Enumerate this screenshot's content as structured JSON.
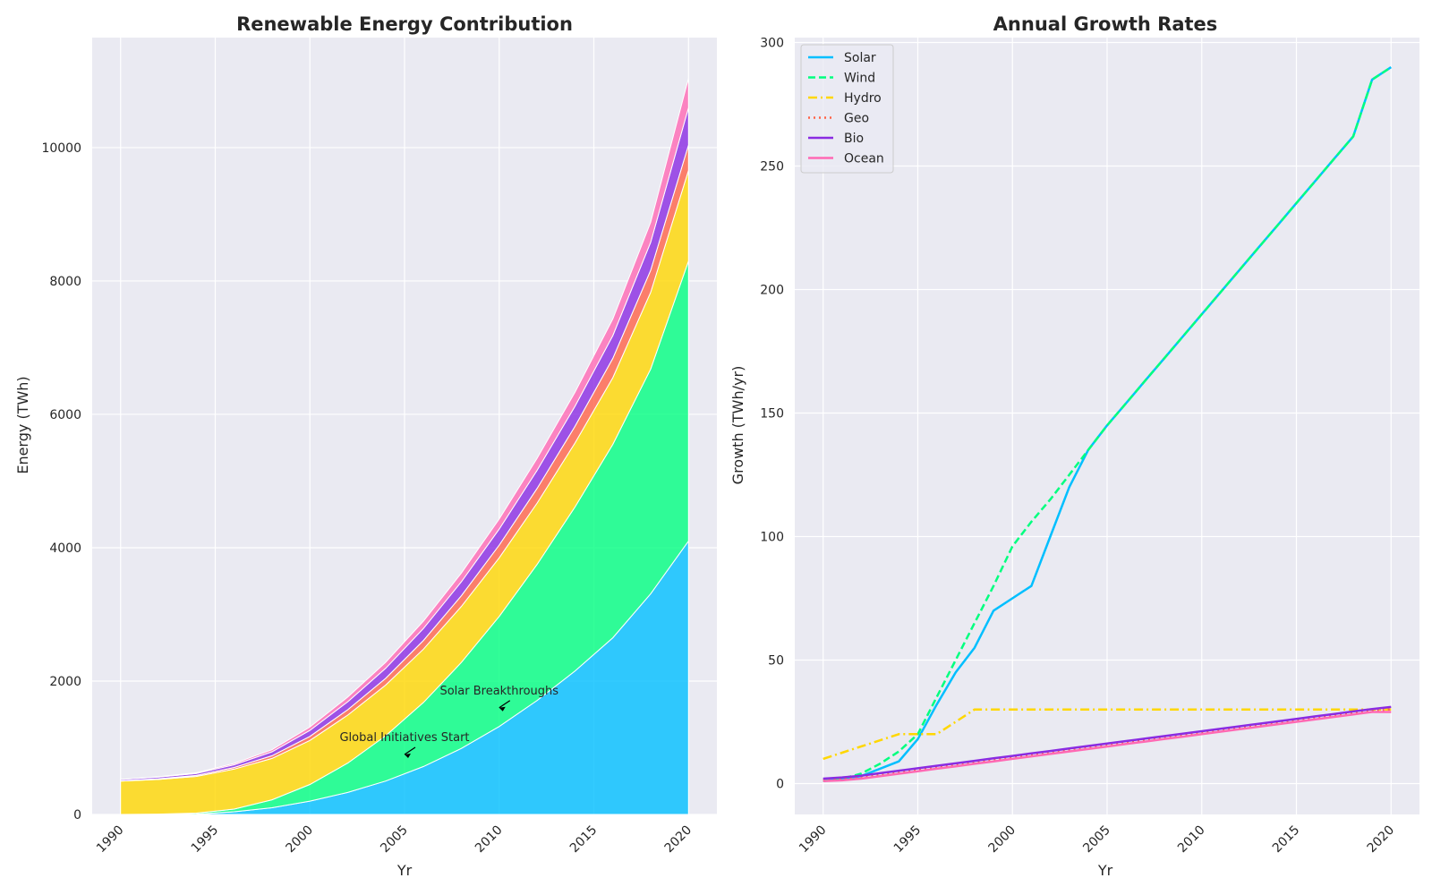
{
  "chart_data": [
    {
      "type": "area",
      "title": "Renewable Energy Contribution",
      "xlabel": "Yr",
      "ylabel": "Energy (TWh)",
      "xlim": [
        1988.5,
        2021.5
      ],
      "ylim": [
        0,
        11650
      ],
      "xticks": [
        1990,
        1995,
        2000,
        2005,
        2010,
        2015,
        2020
      ],
      "yticks": [
        0,
        2000,
        4000,
        6000,
        8000,
        10000
      ],
      "grid": true,
      "stacked": true,
      "x": [
        1990,
        1992,
        1994,
        1996,
        1998,
        2000,
        2002,
        2004,
        2006,
        2008,
        2010,
        2012,
        2014,
        2016,
        2018,
        2020
      ],
      "series": [
        {
          "name": "Solar",
          "color": "#00bfff",
          "values": [
            0,
            0,
            5,
            40,
            100,
            200,
            330,
            500,
            720,
            990,
            1320,
            1710,
            2150,
            2650,
            3310,
            4100
          ]
        },
        {
          "name": "Wind",
          "color": "#00ff7f",
          "values": [
            0,
            5,
            15,
            40,
            120,
            250,
            440,
            680,
            960,
            1290,
            1650,
            2040,
            2460,
            2900,
            3370,
            4200
          ]
        },
        {
          "name": "Hydro",
          "color": "#ffd700",
          "values": [
            500,
            520,
            550,
            600,
            620,
            660,
            720,
            760,
            800,
            840,
            880,
            920,
            960,
            1000,
            1150,
            1360
          ]
        },
        {
          "name": "Geo",
          "color": "#ff6347",
          "values": [
            5,
            10,
            15,
            25,
            40,
            60,
            80,
            100,
            130,
            160,
            190,
            220,
            250,
            290,
            330,
            380
          ]
        },
        {
          "name": "Bio",
          "color": "#8a2be2",
          "values": [
            20,
            25,
            30,
            40,
            60,
            90,
            120,
            150,
            180,
            210,
            240,
            270,
            300,
            340,
            420,
            560
          ]
        },
        {
          "name": "Ocean",
          "color": "#ff69b4",
          "values": [
            0,
            5,
            10,
            20,
            30,
            50,
            70,
            90,
            110,
            130,
            150,
            180,
            210,
            250,
            300,
            440
          ]
        }
      ],
      "annotations": [
        {
          "text": "Global Initiatives Start",
          "x": 2005,
          "y": 1100,
          "arrow_to": [
            2005,
            900
          ]
        },
        {
          "text": "Solar Breakthroughs",
          "x": 2010,
          "y": 1800,
          "arrow_to": [
            2010,
            1600
          ]
        }
      ]
    },
    {
      "type": "line",
      "title": "Annual Growth Rates",
      "xlabel": "Yr",
      "ylabel": "Growth (TWh/yr)",
      "xlim": [
        1988.5,
        2021.5
      ],
      "ylim": [
        -12.5,
        302
      ],
      "xticks": [
        1990,
        1995,
        2000,
        2005,
        2010,
        2015,
        2020
      ],
      "yticks": [
        0,
        50,
        100,
        150,
        200,
        250,
        300
      ],
      "grid": true,
      "legend": "top-left",
      "x": [
        1990,
        1991,
        1992,
        1993,
        1994,
        1995,
        1996,
        1997,
        1998,
        1999,
        2000,
        2001,
        2002,
        2003,
        2004,
        2005,
        2006,
        2007,
        2008,
        2009,
        2010,
        2011,
        2012,
        2013,
        2014,
        2015,
        2016,
        2017,
        2018,
        2019,
        2020
      ],
      "series": [
        {
          "name": "Solar",
          "color": "#00bfff",
          "dash": "solid",
          "values": [
            1,
            2,
            3,
            6,
            9,
            18,
            32,
            45,
            55,
            70,
            75,
            80,
            100,
            120,
            135,
            145,
            154,
            163,
            172,
            181,
            190,
            199,
            208,
            217,
            226,
            235,
            244,
            253,
            262,
            285,
            290
          ]
        },
        {
          "name": "Wind",
          "color": "#00ff7f",
          "dash": "dashed",
          "values": [
            1,
            2,
            4,
            8,
            13,
            20,
            35,
            50,
            65,
            80,
            96,
            106,
            115,
            125,
            135,
            145,
            154,
            163,
            172,
            181,
            190,
            199,
            208,
            217,
            226,
            235,
            244,
            253,
            262,
            285,
            290
          ]
        },
        {
          "name": "Hydro",
          "color": "#ffd700",
          "dash": "dashdot",
          "values": [
            10,
            12.5,
            15,
            17.5,
            20,
            20,
            20,
            25,
            30,
            30,
            30,
            30,
            30,
            30,
            30,
            30,
            30,
            30,
            30,
            30,
            30,
            30,
            30,
            30,
            30,
            30,
            30,
            30,
            30,
            30,
            30
          ]
        },
        {
          "name": "Geo",
          "color": "#ff6347",
          "dash": "dotted",
          "values": [
            1.5,
            2,
            2.8,
            3.6,
            4.5,
            5.5,
            6.5,
            7.5,
            8.5,
            9.5,
            10.5,
            11.5,
            12.5,
            13.5,
            14.5,
            15.5,
            16.5,
            17.5,
            18.5,
            19.5,
            20.5,
            21.5,
            22.5,
            23.5,
            24.5,
            25.5,
            26.5,
            27.5,
            28.5,
            29.5,
            30
          ]
        },
        {
          "name": "Bio",
          "color": "#8a2be2",
          "dash": "solid",
          "values": [
            2,
            2.5,
            3.2,
            4.2,
            5.2,
            6.2,
            7.2,
            8.2,
            9.2,
            10.2,
            11.2,
            12.2,
            13.2,
            14.2,
            15.2,
            16.2,
            17.2,
            18.2,
            19.2,
            20.2,
            21.2,
            22.2,
            23.2,
            24.2,
            25.2,
            26.2,
            27.2,
            28.2,
            29.2,
            30.2,
            31
          ]
        },
        {
          "name": "Ocean",
          "color": "#ff69b4",
          "dash": "solid",
          "values": [
            1,
            1.3,
            2,
            3,
            4,
            5,
            6,
            7,
            8,
            9,
            10,
            11,
            12,
            13,
            14,
            15,
            16,
            17,
            18,
            19,
            20,
            21,
            22,
            23,
            24,
            25,
            26,
            27,
            28,
            29,
            29
          ]
        }
      ]
    }
  ]
}
